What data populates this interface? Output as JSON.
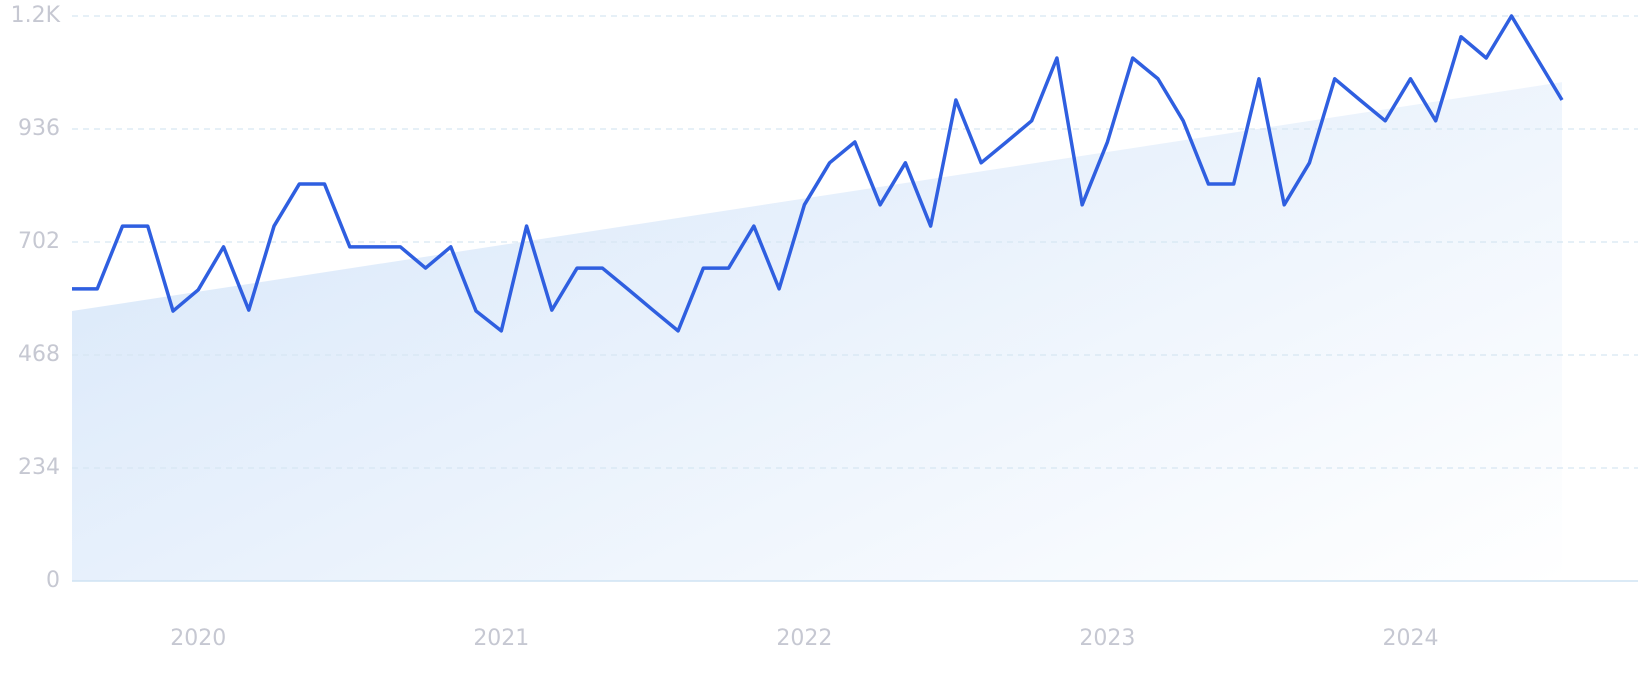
{
  "chart_data": {
    "type": "line",
    "categories": [
      null,
      null,
      null,
      null,
      null,
      "2020",
      null,
      null,
      null,
      null,
      null,
      null,
      null,
      null,
      null,
      null,
      null,
      "2021",
      null,
      null,
      null,
      null,
      null,
      null,
      null,
      null,
      null,
      null,
      null,
      "2022",
      null,
      null,
      null,
      null,
      null,
      null,
      null,
      null,
      null,
      null,
      null,
      "2023",
      null,
      null,
      null,
      null,
      null,
      null,
      null,
      null,
      null,
      null,
      null,
      "2024",
      null,
      null,
      null,
      null,
      null,
      null
    ],
    "values": [
      605,
      605,
      735,
      735,
      559,
      603,
      692,
      561,
      735,
      822,
      822,
      692,
      692,
      692,
      648,
      692,
      559,
      518,
      735,
      561,
      648,
      648,
      605,
      561,
      518,
      648,
      648,
      735,
      605,
      779,
      866,
      909,
      779,
      866,
      735,
      996,
      866,
      909,
      953,
      1083,
      779,
      909,
      1083,
      1040,
      953,
      822,
      822,
      1040,
      779,
      866,
      1040,
      996,
      953,
      1040,
      953,
      1127,
      1083,
      1170,
      1083,
      996
    ],
    "trend": [
      559,
      1033
    ],
    "color": "#2f5fe0",
    "ylim": [
      0,
      1170
    ],
    "yticks": [
      0,
      234,
      468,
      702,
      936,
      {
        "value": 1170,
        "label": "1.2K"
      }
    ],
    "grid": true
  }
}
